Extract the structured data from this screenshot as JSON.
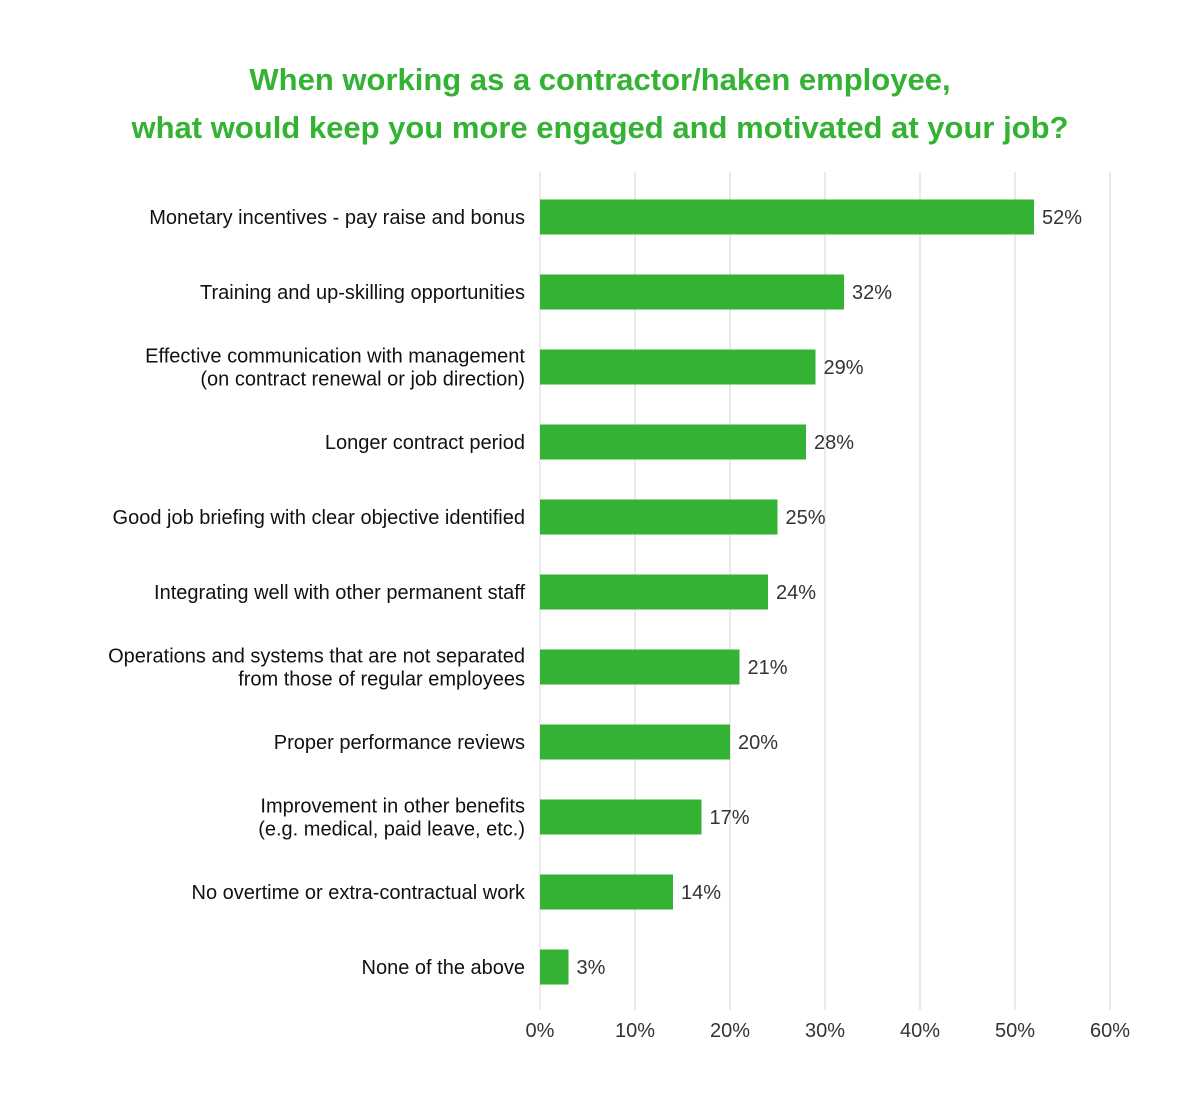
{
  "chart_data": {
    "type": "bar",
    "orientation": "horizontal",
    "title_lines": [
      "When working as a contractor/haken employee,",
      "what would keep you more engaged and motivated at your job?"
    ],
    "categories": [
      [
        "Monetary incentives - pay raise and bonus"
      ],
      [
        "Training and up-skilling opportunities"
      ],
      [
        "Effective communication with management",
        "(on contract renewal or job direction)"
      ],
      [
        "Longer contract period"
      ],
      [
        "Good job briefing with clear objective identified"
      ],
      [
        "Integrating well with other permanent staff"
      ],
      [
        "Operations and systems that are not separated",
        "from those of regular employees"
      ],
      [
        "Proper performance reviews"
      ],
      [
        "Improvement in other benefits",
        "(e.g. medical, paid leave, etc.)"
      ],
      [
        "No overtime or extra-contractual work"
      ],
      [
        "None of the above"
      ]
    ],
    "values": [
      52,
      32,
      29,
      28,
      25,
      24,
      21,
      20,
      17,
      14,
      3
    ],
    "value_labels": [
      "52%",
      "32%",
      "29%",
      "28%",
      "25%",
      "24%",
      "21%",
      "20%",
      "17%",
      "14%",
      "3%"
    ],
    "xlim": [
      0,
      60
    ],
    "xticks": [
      0,
      10,
      20,
      30,
      40,
      50,
      60
    ],
    "xtick_labels": [
      "0%",
      "10%",
      "20%",
      "30%",
      "40%",
      "50%",
      "60%"
    ],
    "xlabel": "",
    "ylabel": "",
    "grid": true,
    "legend": "none",
    "bar_color": "#34b233",
    "title_color": "#34b233",
    "grid_color": "#e3e3e3"
  }
}
